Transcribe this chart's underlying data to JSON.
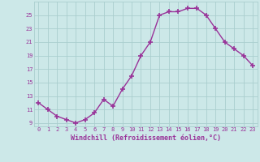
{
  "hours": [
    0,
    1,
    2,
    3,
    4,
    5,
    6,
    7,
    8,
    9,
    10,
    11,
    12,
    13,
    14,
    15,
    16,
    17,
    18,
    19,
    20,
    21,
    22,
    23
  ],
  "temps": [
    12.0,
    11.0,
    10.0,
    9.5,
    9.0,
    9.5,
    10.5,
    12.5,
    11.5,
    14.0,
    16.0,
    19.0,
    21.0,
    25.0,
    25.5,
    25.5,
    26.0,
    26.0,
    25.0,
    23.0,
    21.0,
    20.0,
    19.0,
    17.5
  ],
  "line_color": "#993399",
  "marker": "+",
  "markersize": 4,
  "markeredgewidth": 1.2,
  "linewidth": 1.0,
  "bg_color": "#cce8e8",
  "grid_color": "#aacece",
  "tick_color": "#993399",
  "label_color": "#993399",
  "xlabel": "Windchill (Refroidissement éolien,°C)",
  "ylabel": "",
  "ylim": [
    8.5,
    27
  ],
  "yticks": [
    9,
    11,
    13,
    15,
    17,
    19,
    21,
    23,
    25
  ],
  "xlim": [
    -0.5,
    23.5
  ],
  "title": ""
}
